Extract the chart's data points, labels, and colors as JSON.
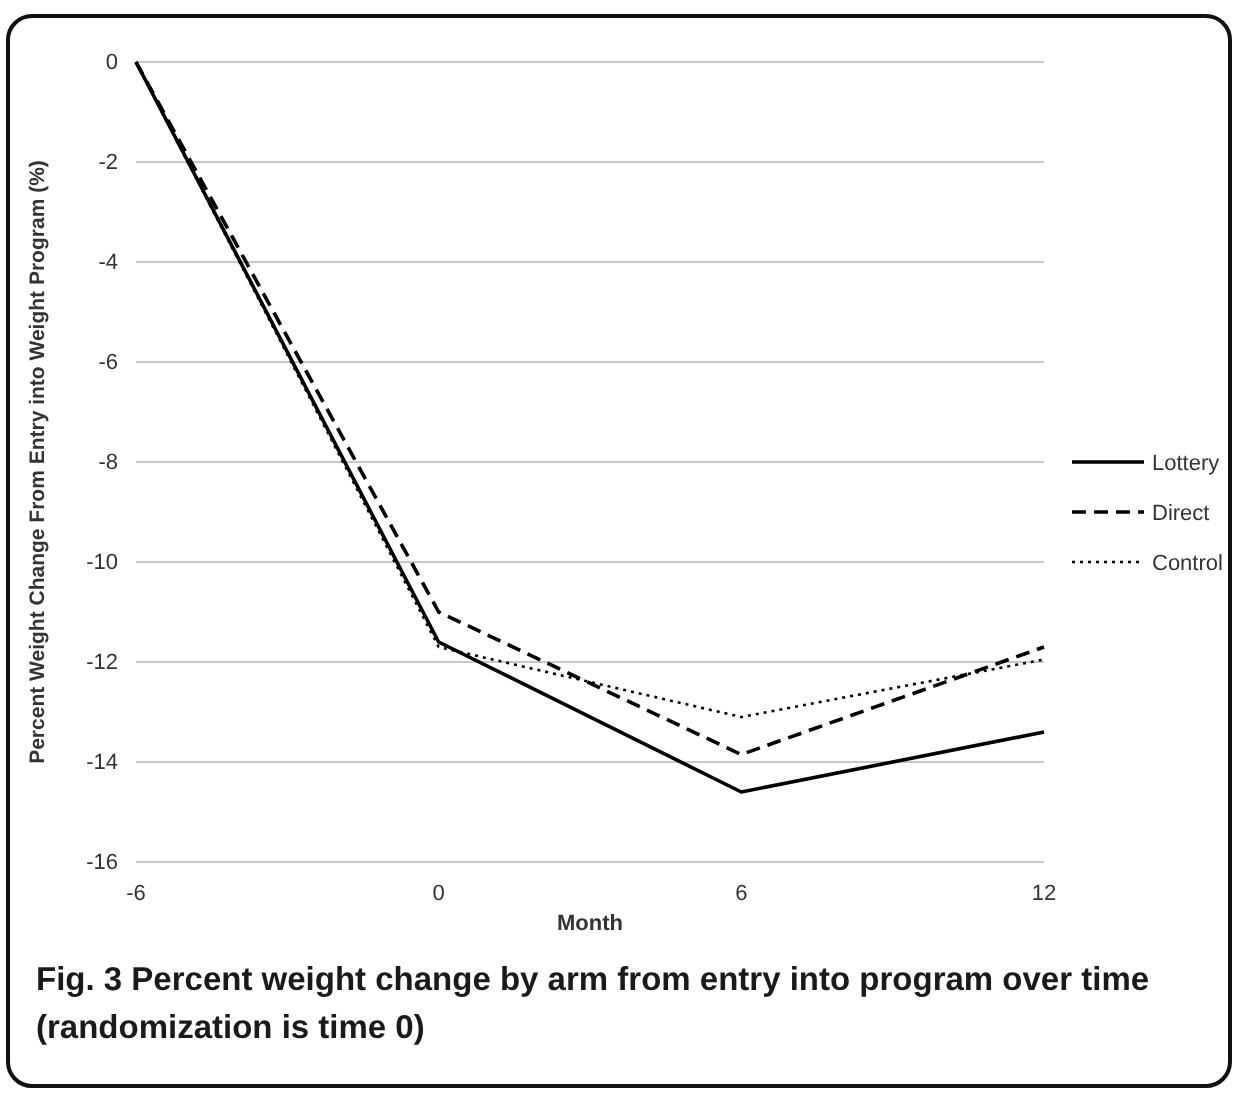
{
  "chart_data": {
    "type": "line",
    "xlabel": "Month",
    "ylabel": "Percent Weight Change From Entry  into Weight Program (%)",
    "x": [
      -6,
      0,
      6,
      12
    ],
    "xlim": [
      -6,
      12
    ],
    "xticks": [
      -6,
      0,
      6,
      12
    ],
    "ylim": [
      -16,
      0
    ],
    "yticks": [
      -16,
      -14,
      -12,
      -10,
      -8,
      -6,
      -4,
      -2,
      0
    ],
    "grid": "y",
    "legend": "right",
    "marker": "none",
    "series": [
      {
        "name": "Lottery",
        "color": "#000000",
        "line_style": "solid",
        "values": [
          0,
          -11.6,
          -14.6,
          -13.4
        ]
      },
      {
        "name": "Direct",
        "color": "#000000",
        "line_style": "dashed",
        "values": [
          0,
          -11.0,
          -13.85,
          -11.7
        ]
      },
      {
        "name": "Control",
        "color": "#000000",
        "line_style": "dotted",
        "values": [
          0,
          -11.7,
          -13.1,
          -11.95
        ]
      }
    ],
    "annotations": [
      "Fig. 3 Percent weight change by arm from entry into program over time (randomization is time 0)"
    ]
  }
}
